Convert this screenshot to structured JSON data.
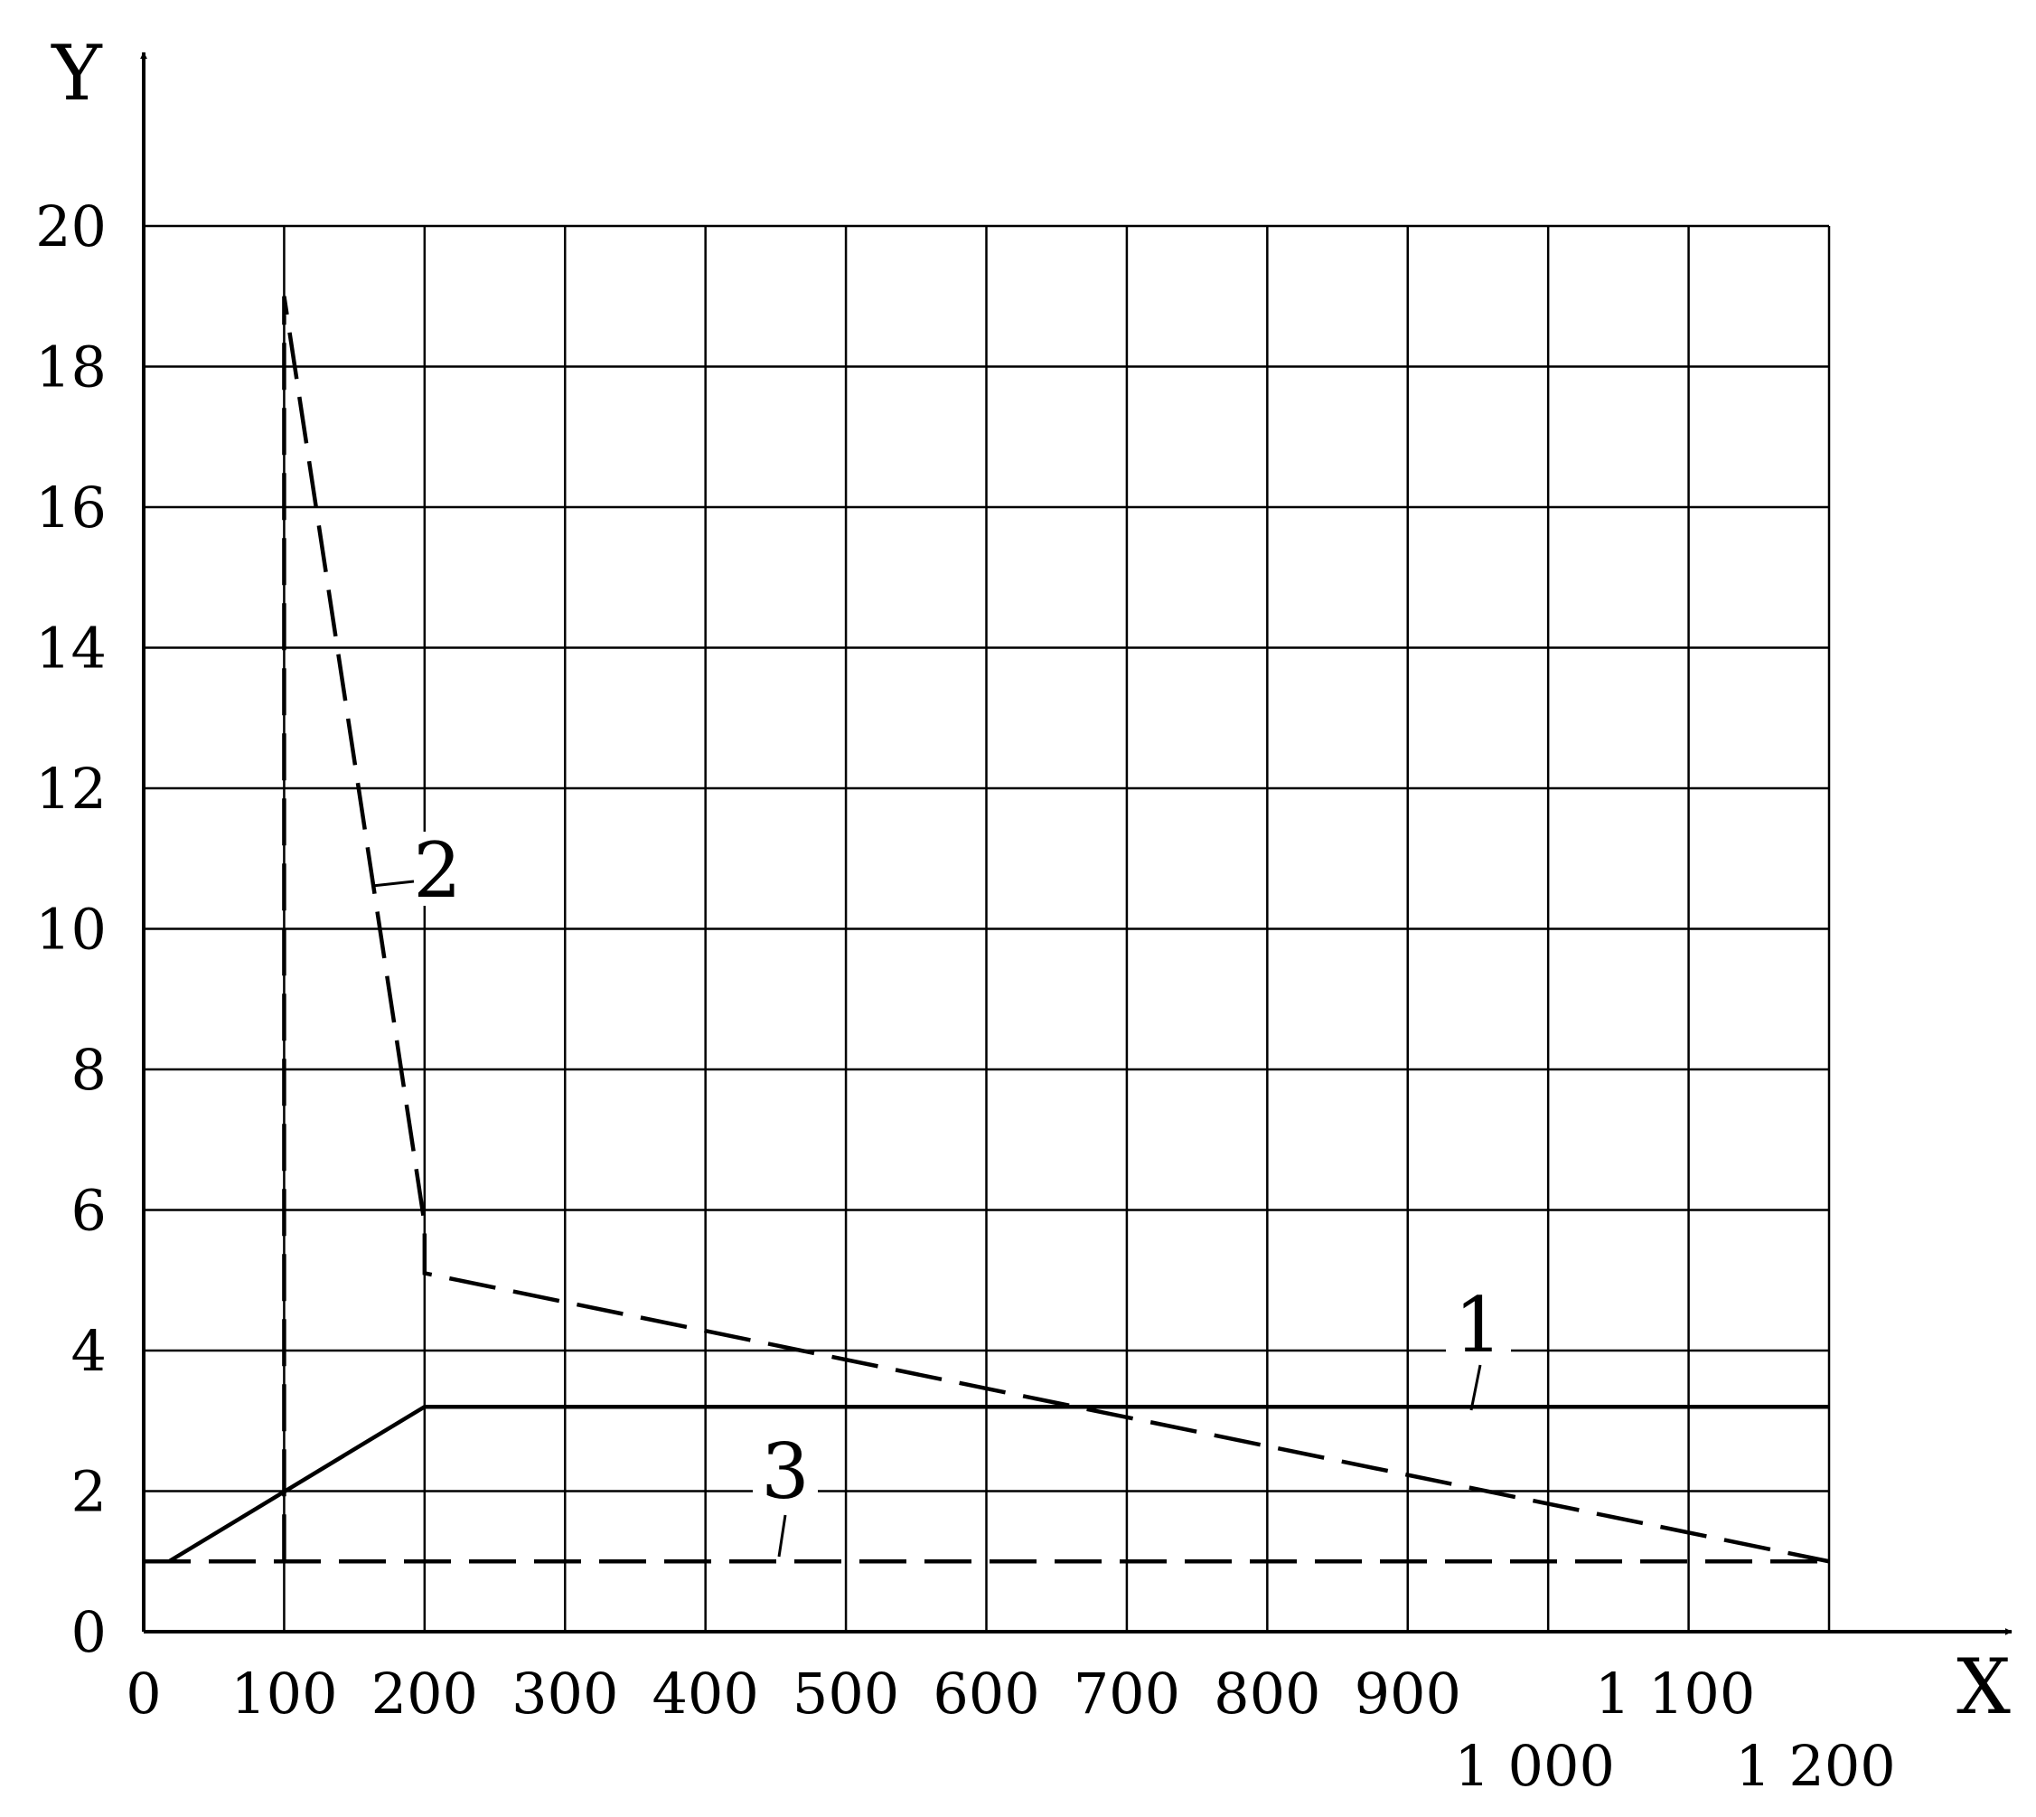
{
  "chart_data": {
    "type": "line",
    "x_label": "X",
    "y_label": "Y",
    "xlim": [
      0,
      1200
    ],
    "ylim": [
      0,
      20
    ],
    "xticks": [
      0,
      100,
      200,
      300,
      400,
      500,
      600,
      700,
      800,
      900,
      {
        "value": 1000,
        "label": "1 000"
      },
      {
        "value": 1100,
        "label": "1 100"
      },
      {
        "value": 1200,
        "label": "1 200"
      }
    ],
    "yticks": [
      0,
      2,
      4,
      6,
      8,
      10,
      12,
      14,
      16,
      18,
      20
    ],
    "grid": true,
    "series": [
      {
        "name": "1",
        "color": "#000000",
        "style": "solid",
        "x": [
          18,
          200,
          1200
        ],
        "values": [
          1,
          3.2,
          3.2
        ]
      },
      {
        "name": "2",
        "color": "#000000",
        "style": "dashed",
        "x": [
          100,
          100,
          200,
          200,
          1200
        ],
        "values": [
          1,
          19,
          5.8,
          5.1,
          1
        ]
      },
      {
        "name": "3",
        "color": "#000000",
        "style": "dashed",
        "x": [
          0,
          1200
        ],
        "values": [
          1,
          1
        ]
      }
    ]
  }
}
